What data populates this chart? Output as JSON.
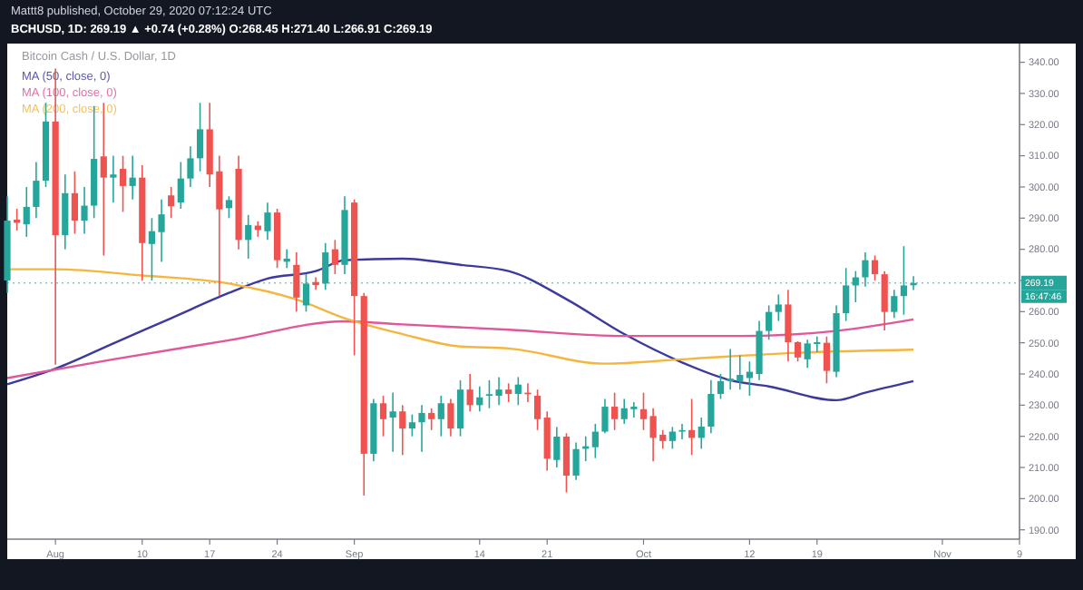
{
  "chart_data": {
    "type": "candlestick",
    "title": "Bitcoin Cash / U.S. Dollar, 1D",
    "annotations": [
      "Mattt8 published, October 29, 2020 07:12:24 UTC",
      "BCHUSD, 1D: 269.19 ▲ +0.74 (+0.28%) O:268.45 H:271.40 L:266.91 C:269.19",
      "16:47:46"
    ],
    "x": [
      "2020-07-27",
      "2020-07-28",
      "2020-07-29",
      "2020-07-30",
      "2020-07-31",
      "2020-08-01",
      "2020-08-02",
      "2020-08-03",
      "2020-08-04",
      "2020-08-05",
      "2020-08-06",
      "2020-08-07",
      "2020-08-08",
      "2020-08-09",
      "2020-08-10",
      "2020-08-11",
      "2020-08-12",
      "2020-08-13",
      "2020-08-14",
      "2020-08-15",
      "2020-08-16",
      "2020-08-17",
      "2020-08-18",
      "2020-08-19",
      "2020-08-20",
      "2020-08-21",
      "2020-08-22",
      "2020-08-23",
      "2020-08-24",
      "2020-08-25",
      "2020-08-26",
      "2020-08-27",
      "2020-08-28",
      "2020-08-29",
      "2020-08-30",
      "2020-08-31",
      "2020-09-01",
      "2020-09-02",
      "2020-09-03",
      "2020-09-04",
      "2020-09-05",
      "2020-09-06",
      "2020-09-07",
      "2020-09-08",
      "2020-09-09",
      "2020-09-10",
      "2020-09-11",
      "2020-09-12",
      "2020-09-13",
      "2020-09-14",
      "2020-09-15",
      "2020-09-16",
      "2020-09-17",
      "2020-09-18",
      "2020-09-19",
      "2020-09-20",
      "2020-09-21",
      "2020-09-22",
      "2020-09-23",
      "2020-09-24",
      "2020-09-25",
      "2020-09-26",
      "2020-09-27",
      "2020-09-28",
      "2020-09-29",
      "2020-09-30",
      "2020-10-01",
      "2020-10-02",
      "2020-10-03",
      "2020-10-04",
      "2020-10-05",
      "2020-10-06",
      "2020-10-07",
      "2020-10-08",
      "2020-10-09",
      "2020-10-10",
      "2020-10-11",
      "2020-10-12",
      "2020-10-13",
      "2020-10-14",
      "2020-10-15",
      "2020-10-16",
      "2020-10-17",
      "2020-10-18",
      "2020-10-19",
      "2020-10-20",
      "2020-10-21",
      "2020-10-22",
      "2020-10-23",
      "2020-10-24",
      "2020-10-25",
      "2020-10-26",
      "2020-10-27",
      "2020-10-28",
      "2020-10-29"
    ],
    "ohlc": [
      [
        270,
        297,
        266,
        289.2
      ],
      [
        289.5,
        293,
        286,
        288.5
      ],
      [
        288,
        300,
        284,
        293.6
      ],
      [
        293.6,
        308,
        290,
        302
      ],
      [
        302,
        327,
        300,
        321
      ],
      [
        321,
        338,
        243,
        284.5
      ],
      [
        284.5,
        304,
        280,
        298
      ],
      [
        298,
        305,
        285,
        289.2
      ],
      [
        289.2,
        300,
        285,
        294
      ],
      [
        294,
        326,
        290,
        309
      ],
      [
        309.8,
        327,
        278,
        303
      ],
      [
        303,
        310,
        295,
        304
      ],
      [
        305.8,
        310,
        292,
        300.3
      ],
      [
        300.3,
        310,
        296,
        303
      ],
      [
        303,
        307,
        270,
        282
      ],
      [
        281.7,
        290,
        270,
        285.8
      ],
      [
        285.5,
        296,
        276,
        291.2
      ],
      [
        297.3,
        300,
        290,
        293.8
      ],
      [
        295,
        308,
        293,
        302.7
      ],
      [
        302.7,
        313,
        300,
        309.2
      ],
      [
        309.2,
        327,
        305,
        318.5
      ],
      [
        318.5,
        327,
        300,
        304
      ],
      [
        305,
        310,
        265,
        292.8
      ],
      [
        293.2,
        297,
        290,
        295.8
      ],
      [
        305.8,
        310,
        280,
        283
      ],
      [
        283,
        291,
        277,
        287.8
      ],
      [
        287.6,
        289,
        284,
        286.2
      ],
      [
        285.8,
        295,
        283,
        291.8
      ],
      [
        291.8,
        293,
        274,
        276.5
      ],
      [
        276,
        280,
        274,
        277
      ],
      [
        275,
        279,
        260,
        264.5
      ],
      [
        262,
        272,
        260,
        269
      ],
      [
        269.5,
        271,
        267,
        268.5
      ],
      [
        269,
        282,
        267,
        279
      ],
      [
        280,
        283,
        272,
        275
      ],
      [
        275,
        297,
        272,
        292.6
      ],
      [
        295,
        296,
        246,
        265
      ],
      [
        265,
        266,
        201,
        214.4
      ],
      [
        214.4,
        232,
        212,
        230.6
      ],
      [
        230.6,
        233,
        220,
        225.5
      ],
      [
        226,
        234,
        215,
        228
      ],
      [
        228,
        230,
        214,
        222.5
      ],
      [
        222.5,
        227,
        220,
        224.5
      ],
      [
        224.5,
        230,
        215,
        227.5
      ],
      [
        227.5,
        229,
        222,
        225.5
      ],
      [
        225.5,
        233,
        220,
        230.6
      ],
      [
        230.6,
        232,
        220,
        222.5
      ],
      [
        222.5,
        238,
        220,
        235
      ],
      [
        235,
        240,
        228,
        230
      ],
      [
        230,
        236,
        228,
        232.5
      ],
      [
        233,
        238,
        229,
        233.5
      ],
      [
        233,
        239,
        230,
        235
      ],
      [
        235,
        237,
        231,
        233.6
      ],
      [
        233.6,
        239,
        230,
        236.6
      ],
      [
        234,
        237,
        231,
        233.5
      ],
      [
        233,
        235,
        222,
        225.5
      ],
      [
        226,
        228,
        209,
        212.8
      ],
      [
        212.4,
        223,
        210,
        219.9
      ],
      [
        219.9,
        221,
        202,
        207.4
      ],
      [
        207.4,
        218,
        206,
        215.9
      ],
      [
        216,
        220,
        212,
        216.8
      ],
      [
        216.5,
        224,
        213,
        221.5
      ],
      [
        221.5,
        232,
        221,
        229.5
      ],
      [
        229.5,
        234,
        222,
        225.5
      ],
      [
        225.5,
        232,
        224,
        229
      ],
      [
        228.7,
        231,
        226,
        229.5
      ],
      [
        228.7,
        234,
        222,
        225.5
      ],
      [
        226.5,
        229,
        212,
        219.5
      ],
      [
        220.5,
        222,
        216,
        218.5
      ],
      [
        218.5,
        223,
        216,
        221.5
      ],
      [
        221.5,
        224,
        219,
        222
      ],
      [
        222,
        232,
        214,
        219.5
      ],
      [
        219.5,
        226,
        216,
        223.1
      ],
      [
        223.1,
        238,
        221,
        233.6
      ],
      [
        233.6,
        240,
        232,
        237.7
      ],
      [
        237.7,
        248,
        235,
        238.5
      ],
      [
        237.7,
        246,
        235,
        239.7
      ],
      [
        238.7,
        244,
        233,
        240.7
      ],
      [
        240,
        257,
        238,
        253.8
      ],
      [
        253.8,
        262,
        251,
        259.9
      ],
      [
        259.9,
        265.5,
        257,
        262.3
      ],
      [
        262.3,
        267,
        244,
        250.2
      ],
      [
        250.2,
        250.5,
        244,
        245.3
      ],
      [
        244.7,
        251,
        242,
        249.8
      ],
      [
        249.6,
        252,
        247,
        250.2
      ],
      [
        250,
        252,
        237,
        241
      ],
      [
        240.7,
        262,
        239,
        259.5
      ],
      [
        259.5,
        274,
        257,
        268.4
      ],
      [
        268.4,
        273,
        263,
        271
      ],
      [
        271,
        279,
        268,
        276.5
      ],
      [
        276.5,
        278,
        270,
        272
      ],
      [
        272,
        273,
        254,
        259.9
      ],
      [
        259.9,
        267,
        258,
        265
      ],
      [
        265,
        281,
        259,
        268.4
      ],
      [
        268.45,
        271.4,
        266.91,
        269.19
      ]
    ],
    "series": [
      {
        "name": "MA (50, close, 0)",
        "type": "line",
        "color": "#3d3a9e",
        "x": [
          "2020-07-27",
          "2020-08-01",
          "2020-08-07",
          "2020-08-13",
          "2020-08-19",
          "2020-08-23",
          "2020-08-28",
          "2020-08-31",
          "2020-09-06",
          "2020-09-12",
          "2020-09-17",
          "2020-09-23",
          "2020-09-29",
          "2020-10-05",
          "2020-10-10",
          "2020-10-14",
          "2020-10-21",
          "2020-10-24",
          "2020-10-29"
        ],
        "values": [
          236.7,
          241.7,
          249.8,
          257.9,
          266,
          270.6,
          273,
          276.5,
          277,
          275,
          273,
          264,
          252.8,
          243.7,
          238,
          236,
          231.6,
          234,
          237.7
        ]
      },
      {
        "name": "MA (100, close, 0)",
        "type": "line",
        "color": "#e0579a",
        "x": [
          "2020-07-27",
          "2020-08-07",
          "2020-08-19",
          "2020-08-31",
          "2020-09-06",
          "2020-09-17",
          "2020-09-29",
          "2020-10-11",
          "2020-10-21",
          "2020-10-29"
        ],
        "values": [
          238.7,
          244.7,
          250.8,
          256.9,
          255.9,
          254.2,
          252.2,
          252.2,
          253.8,
          257.5
        ]
      },
      {
        "name": "MA (200, close, 0)",
        "type": "line",
        "color": "#f5b63f",
        "x": [
          "2020-07-27",
          "2020-08-01",
          "2020-08-10",
          "2020-08-19",
          "2020-08-26",
          "2020-08-31",
          "2020-09-06",
          "2020-09-12",
          "2020-09-17",
          "2020-09-27",
          "2020-10-05",
          "2020-10-17",
          "2020-10-29"
        ],
        "values": [
          273.6,
          273.6,
          271.6,
          269,
          263.9,
          257.9,
          252.8,
          248.8,
          248.2,
          243.3,
          244.7,
          246.8,
          247.8
        ]
      }
    ],
    "ref_lines": [
      {
        "axis": "y",
        "value": 269.19,
        "label": "269.19",
        "color": "#26a69a",
        "line_style": "dotted"
      }
    ],
    "xlim": [
      "2020-07-27",
      "2020-11-09"
    ],
    "xticks": [
      {
        "value": "2020-08-01",
        "label": "Aug"
      },
      {
        "value": "2020-08-10",
        "label": "10"
      },
      {
        "value": "2020-08-17",
        "label": "17"
      },
      {
        "value": "2020-08-24",
        "label": "24"
      },
      {
        "value": "2020-09-01",
        "label": "Sep"
      },
      {
        "value": "2020-09-14",
        "label": "14"
      },
      {
        "value": "2020-09-21",
        "label": "21"
      },
      {
        "value": "2020-10-01",
        "label": "Oct"
      },
      {
        "value": "2020-10-12",
        "label": "12"
      },
      {
        "value": "2020-10-19",
        "label": "19"
      },
      {
        "value": "2020-11-01",
        "label": "Nov"
      },
      {
        "value": "2020-11-09",
        "label": "9"
      }
    ],
    "ylim": [
      187,
      346
    ],
    "yticks": [
      {
        "value": 190,
        "label": "190.00"
      },
      {
        "value": 200,
        "label": "200.00"
      },
      {
        "value": 210,
        "label": "210.00"
      },
      {
        "value": 220,
        "label": "220.00"
      },
      {
        "value": 230,
        "label": "230.00"
      },
      {
        "value": 240,
        "label": "240.00"
      },
      {
        "value": 250,
        "label": "250.00"
      },
      {
        "value": 260,
        "label": "260.00"
      },
      {
        "value": 270,
        "label": null
      },
      {
        "value": 280,
        "label": "280.00"
      },
      {
        "value": 290,
        "label": "290.00"
      },
      {
        "value": 300,
        "label": "300.00"
      },
      {
        "value": 310,
        "label": "310.00"
      },
      {
        "value": 320,
        "label": "320.00"
      },
      {
        "value": 330,
        "label": "330.00"
      },
      {
        "value": 340,
        "label": "340.00"
      }
    ],
    "legend": "top left"
  }
}
